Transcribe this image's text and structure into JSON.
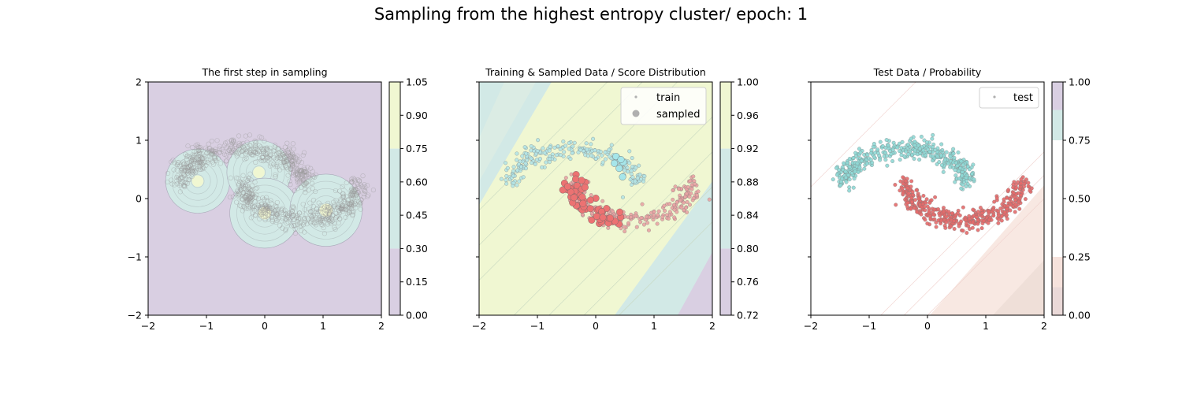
{
  "chart_data": {
    "suptitle": "Sampling from the highest entropy cluster/ epoch: 1",
    "panels": [
      {
        "id": "p1",
        "type": "scatter",
        "title": "The first step in sampling",
        "xlim": [
          -2,
          2
        ],
        "ylim": [
          -2,
          2
        ],
        "xticks": [
          "−2",
          "−1",
          "0",
          "1",
          "2"
        ],
        "yticks": [
          "−2",
          "−1",
          "0",
          "1",
          "2"
        ],
        "colorbar": {
          "range": [
            0.0,
            1.05
          ],
          "ticks": [
            "0.00",
            "0.15",
            "0.30",
            "0.45",
            "0.60",
            "0.75",
            "0.90",
            "1.05"
          ],
          "bands": [
            {
              "from": 0.0,
              "to": 0.3,
              "color": "#d9cfe2"
            },
            {
              "from": 0.3,
              "to": 0.75,
              "color": "#d2e9e6"
            },
            {
              "from": 0.75,
              "to": 1.05,
              "color": "#f0f7d2"
            }
          ]
        },
        "background": "#d9cfe2",
        "clusters": [
          {
            "x": -1.15,
            "y": 0.3,
            "r": 0.55
          },
          {
            "x": -0.1,
            "y": 0.45,
            "r": 0.55
          },
          {
            "x": 0.0,
            "y": -0.25,
            "r": 0.6
          },
          {
            "x": 1.05,
            "y": -0.2,
            "r": 0.62
          }
        ],
        "point_color": "#9a9a9a",
        "series": [
          {
            "name": "all data",
            "moon": "both",
            "n": 1000
          }
        ]
      },
      {
        "id": "p2",
        "type": "scatter",
        "title": "Training & Sampled Data / Score Distribution",
        "xlim": [
          -2,
          2
        ],
        "ylim": [
          -2,
          2
        ],
        "xticks": [
          "−2",
          "−1",
          "0",
          "1",
          "2"
        ],
        "yticks": [
          "",
          "",
          "",
          "",
          ""
        ],
        "colorbar": {
          "range": [
            0.72,
            1.0
          ],
          "ticks": [
            "0.72",
            "0.76",
            "0.80",
            "0.84",
            "0.88",
            "0.92",
            "0.96",
            "1.00"
          ],
          "bands": [
            {
              "from": 0.72,
              "to": 0.8,
              "color": "#d9cfe2"
            },
            {
              "from": 0.8,
              "to": 0.92,
              "color": "#d2e9e6"
            },
            {
              "from": 0.92,
              "to": 1.0,
              "color": "#f0f7d2"
            }
          ]
        },
        "legend": [
          {
            "label": "train",
            "marker": "small",
            "color": "#b0b0b0"
          },
          {
            "label": "sampled",
            "marker": "large",
            "color": "#b0b0b0"
          }
        ],
        "series": [
          {
            "name": "train class 0",
            "moon": "upper",
            "n": 240,
            "color": "#b4e4e6"
          },
          {
            "name": "train class 1",
            "moon": "lower",
            "n": 240,
            "color": "#e8a3a3"
          },
          {
            "name": "sampled class 1",
            "moon": "lower",
            "n": 55,
            "color": "#ec7272",
            "xrange": [
              -0.6,
              0.5
            ]
          },
          {
            "name": "sampled class 0",
            "moon": "upper",
            "n": 6,
            "color": "#a6e6ea",
            "xrange": [
              0.3,
              0.5
            ]
          }
        ]
      },
      {
        "id": "p3",
        "type": "scatter",
        "title": "Test Data / Probability",
        "xlim": [
          -2,
          2
        ],
        "ylim": [
          -2,
          2
        ],
        "xticks": [
          "−2",
          "−1",
          "0",
          "1",
          "2"
        ],
        "yticks": [
          "",
          "",
          "",
          "",
          ""
        ],
        "colorbar": {
          "range": [
            0.0,
            1.0
          ],
          "ticks": [
            "0.00",
            "0.25",
            "0.50",
            "0.75",
            "1.00"
          ],
          "bands": [
            {
              "from": 0.0,
              "to": 0.12,
              "color": "#ead9d8"
            },
            {
              "from": 0.12,
              "to": 0.25,
              "color": "#f6e2dc"
            },
            {
              "from": 0.25,
              "to": 0.75,
              "color": "#ffffff"
            },
            {
              "from": 0.75,
              "to": 0.88,
              "color": "#d2e9e6"
            },
            {
              "from": 0.88,
              "to": 1.0,
              "color": "#d9cfe2"
            }
          ]
        },
        "legend": [
          {
            "label": "test",
            "marker": "small",
            "color": "#b0b0b0"
          }
        ],
        "series": [
          {
            "name": "test class 0",
            "moon": "upper",
            "n": 420,
            "color": "#8fd8d5"
          },
          {
            "name": "test class 1",
            "moon": "lower",
            "n": 420,
            "color": "#e46a6a"
          }
        ]
      }
    ]
  }
}
